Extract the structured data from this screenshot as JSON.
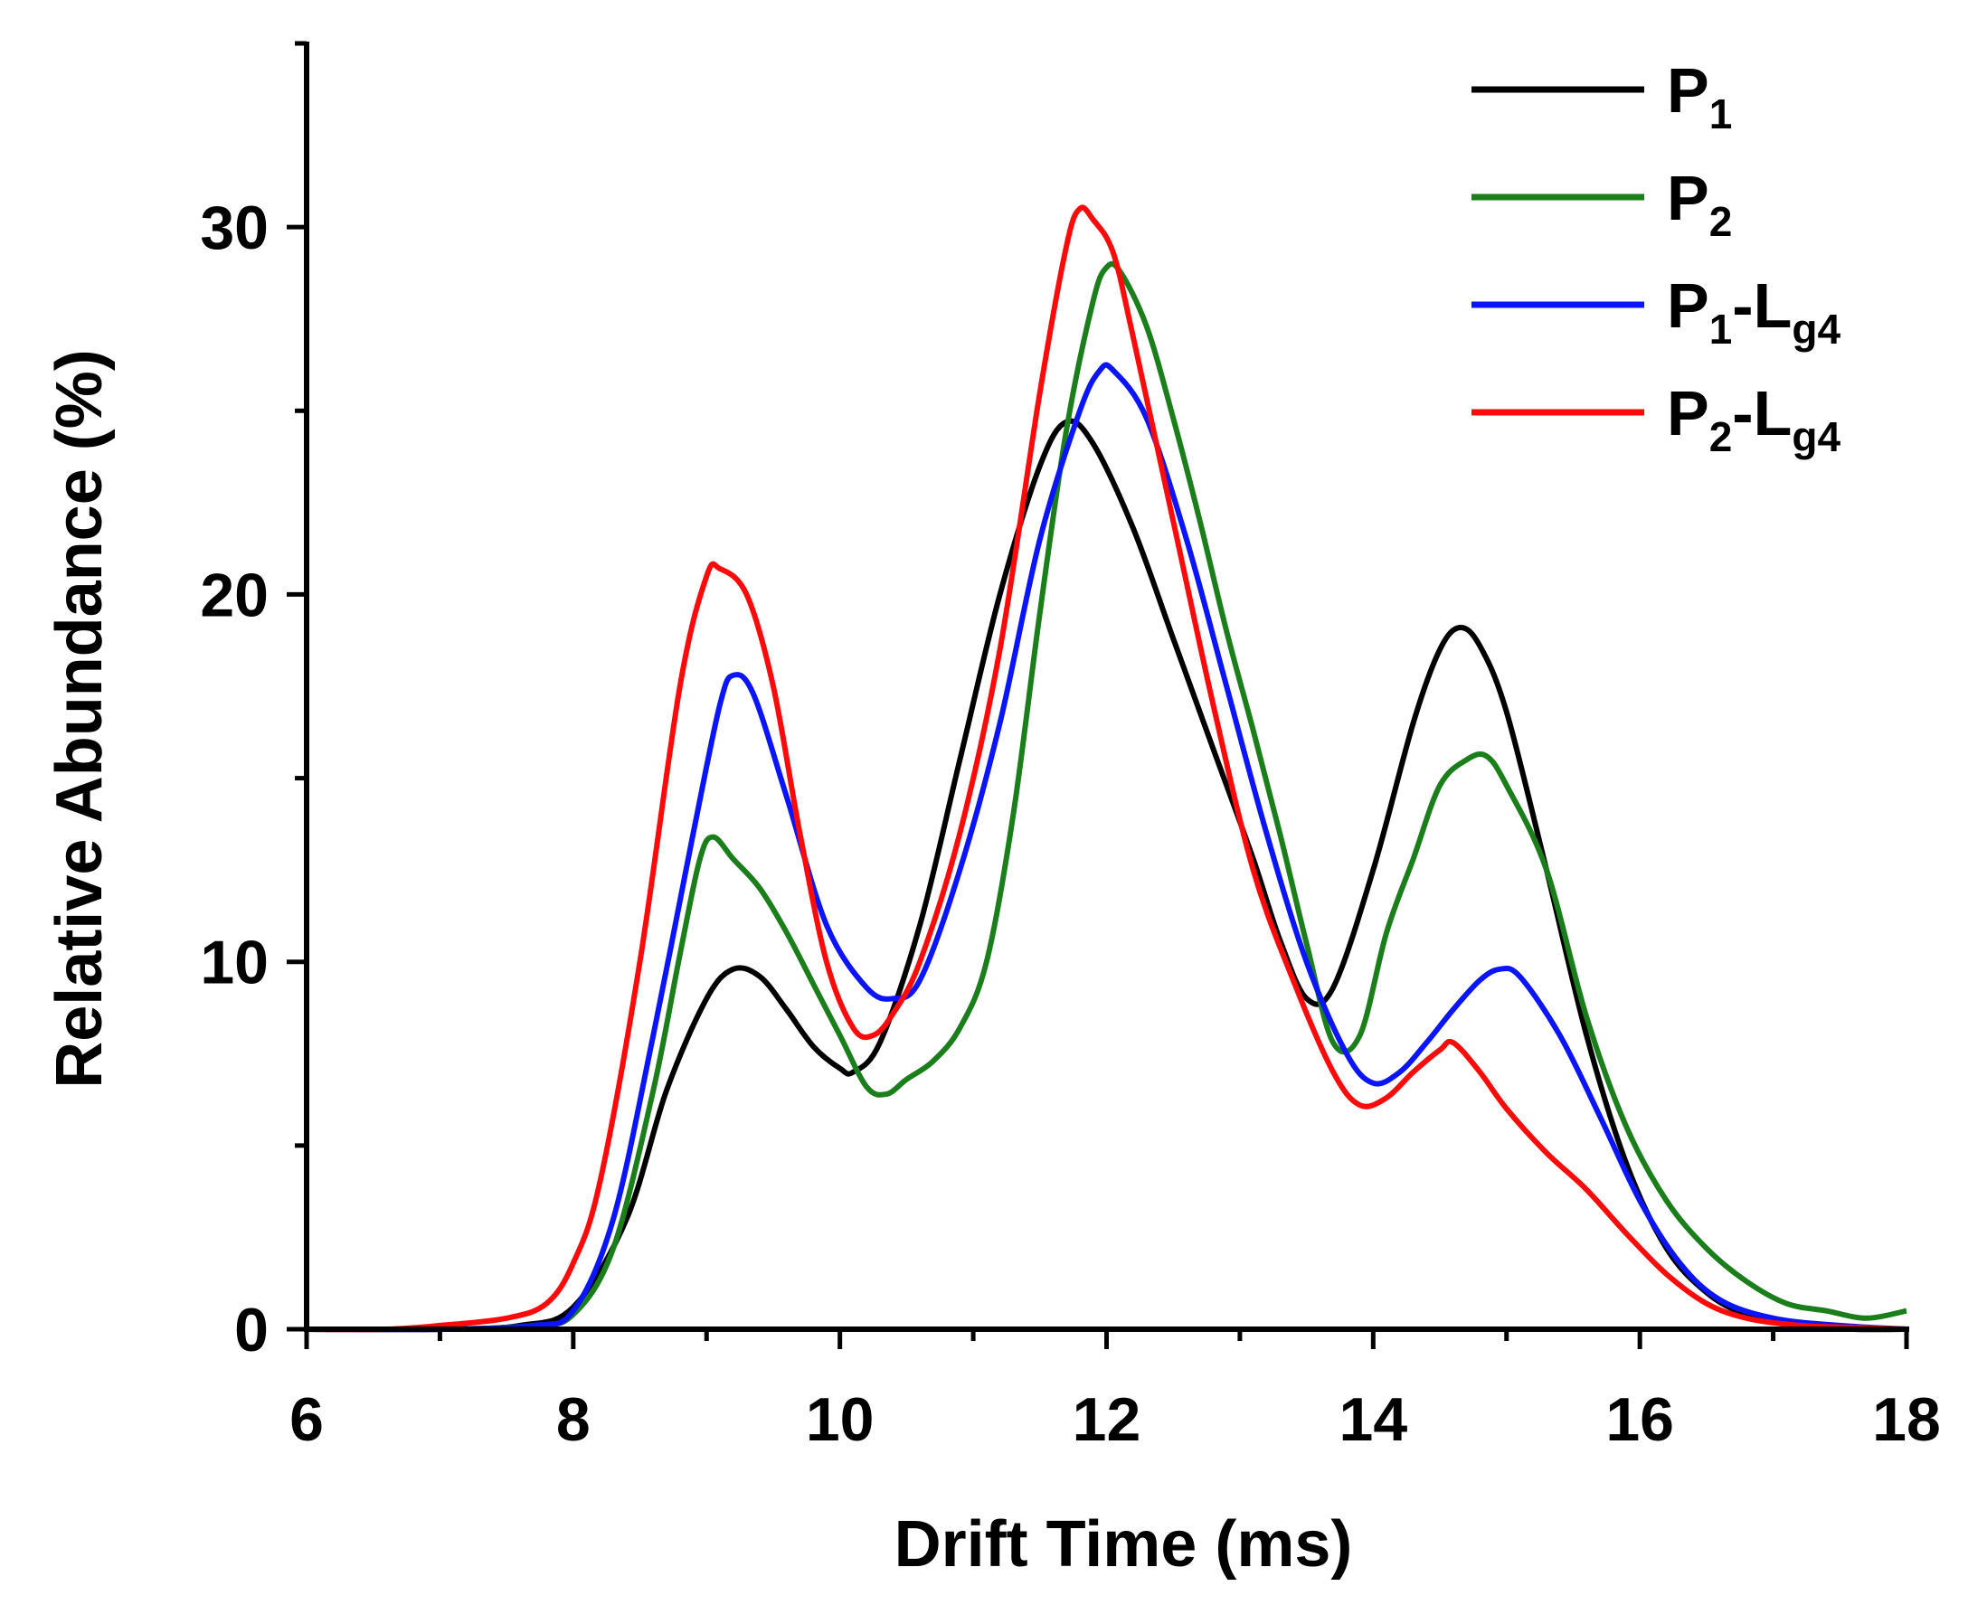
{
  "chart_data": {
    "type": "line",
    "title": "",
    "xlabel": "Drift Time (ms)",
    "ylabel": "Relative Abundance (%)",
    "xlim": [
      6,
      18
    ],
    "ylim": [
      0,
      35
    ],
    "xticks": [
      6,
      8,
      10,
      12,
      14,
      16,
      18
    ],
    "yticks": [
      0,
      10,
      20,
      30
    ],
    "xtick_labels": [
      "6",
      "8",
      "10",
      "12",
      "14",
      "16",
      "18"
    ],
    "ytick_labels": [
      "0",
      "10",
      "20",
      "30"
    ],
    "legend_position": "top-right",
    "grid": false,
    "series": [
      {
        "name": "P1",
        "label_main": "P",
        "label_sub": "1",
        "label_suffix": "",
        "label_suffix_sub": "",
        "color": "#000000",
        "x": [
          6.0,
          7.0,
          7.6,
          8.0,
          8.4,
          8.7,
          9.0,
          9.2,
          9.4,
          9.6,
          9.8,
          10.0,
          10.1,
          10.3,
          10.6,
          10.9,
          11.2,
          11.5,
          11.7,
          11.9,
          12.2,
          12.5,
          12.8,
          13.1,
          13.3,
          13.5,
          13.7,
          14.0,
          14.3,
          14.5,
          14.65,
          14.8,
          15.0,
          15.3,
          15.6,
          15.9,
          16.2,
          16.5,
          16.8,
          17.2,
          17.6,
          18.0
        ],
        "y": [
          0,
          0,
          0.1,
          0.6,
          3.0,
          6.5,
          9.0,
          9.8,
          9.6,
          8.7,
          7.7,
          7.1,
          7.0,
          7.8,
          11.0,
          15.5,
          20.0,
          23.5,
          24.7,
          24.1,
          21.8,
          18.8,
          15.8,
          12.8,
          10.6,
          9.0,
          9.3,
          12.5,
          16.5,
          18.5,
          19.1,
          18.6,
          16.8,
          12.5,
          8.0,
          4.5,
          2.2,
          1.0,
          0.4,
          0.1,
          0.0,
          0.0
        ]
      },
      {
        "name": "P2",
        "label_main": "P",
        "label_sub": "2",
        "label_suffix": "",
        "label_suffix_sub": "",
        "color": "#1a7f1a",
        "x": [
          6.0,
          7.0,
          7.7,
          8.0,
          8.3,
          8.6,
          8.8,
          8.95,
          9.05,
          9.2,
          9.4,
          9.6,
          9.8,
          10.0,
          10.2,
          10.35,
          10.5,
          10.7,
          10.9,
          11.1,
          11.3,
          11.5,
          11.7,
          11.9,
          12.0,
          12.1,
          12.3,
          12.5,
          12.7,
          12.9,
          13.1,
          13.3,
          13.5,
          13.7,
          13.9,
          14.1,
          14.3,
          14.5,
          14.7,
          14.85,
          15.0,
          15.3,
          15.6,
          15.9,
          16.2,
          16.5,
          16.8,
          17.1,
          17.4,
          17.7,
          18.0
        ],
        "y": [
          0,
          0,
          0.1,
          0.4,
          2.2,
          6.5,
          10.2,
          12.8,
          13.4,
          12.8,
          12.0,
          10.8,
          9.4,
          8.0,
          6.6,
          6.4,
          6.8,
          7.3,
          8.2,
          10.0,
          14.0,
          19.5,
          24.5,
          28.0,
          28.9,
          28.8,
          27.3,
          24.8,
          22.0,
          19.0,
          16.3,
          13.5,
          10.5,
          7.8,
          8.0,
          10.8,
          12.8,
          14.8,
          15.5,
          15.6,
          14.8,
          12.5,
          8.5,
          5.5,
          3.5,
          2.2,
          1.3,
          0.7,
          0.5,
          0.3,
          0.5
        ]
      },
      {
        "name": "P1-Lg4",
        "label_main": "P",
        "label_sub": "1",
        "label_suffix": "-L",
        "label_suffix_sub": "g4",
        "color": "#0a14ff",
        "x": [
          6.0,
          7.0,
          7.7,
          8.0,
          8.3,
          8.6,
          8.9,
          9.1,
          9.2,
          9.35,
          9.6,
          9.9,
          10.2,
          10.4,
          10.6,
          10.9,
          11.2,
          11.5,
          11.8,
          11.95,
          12.05,
          12.3,
          12.6,
          12.9,
          13.2,
          13.5,
          13.8,
          14.0,
          14.2,
          14.4,
          14.6,
          14.8,
          14.95,
          15.1,
          15.4,
          15.7,
          16.0,
          16.3,
          16.6,
          17.0,
          17.5,
          18.0
        ],
        "y": [
          0,
          0,
          0.1,
          0.5,
          3.0,
          8.0,
          13.5,
          17.0,
          17.8,
          17.3,
          14.5,
          11.0,
          9.3,
          9.0,
          9.5,
          12.5,
          16.5,
          21.5,
          25.0,
          26.1,
          26.1,
          24.8,
          21.5,
          17.5,
          13.5,
          10.0,
          7.5,
          6.7,
          7.0,
          7.8,
          8.7,
          9.5,
          9.8,
          9.6,
          8.0,
          5.8,
          3.5,
          1.8,
          0.8,
          0.3,
          0.1,
          0.0
        ]
      },
      {
        "name": "P2-Lg4",
        "label_main": "P",
        "label_sub": "2",
        "label_suffix": "-L",
        "label_suffix_sub": "g4",
        "color": "#ff0a0a",
        "x": [
          6.0,
          6.6,
          7.0,
          7.5,
          7.8,
          8.0,
          8.2,
          8.5,
          8.8,
          9.0,
          9.1,
          9.3,
          9.5,
          9.7,
          9.9,
          10.1,
          10.25,
          10.4,
          10.6,
          10.9,
          11.2,
          11.5,
          11.7,
          11.8,
          11.9,
          12.05,
          12.2,
          12.5,
          12.8,
          13.1,
          13.4,
          13.7,
          13.9,
          14.1,
          14.3,
          14.5,
          14.6,
          14.8,
          15.0,
          15.3,
          15.6,
          15.9,
          16.2,
          16.5,
          16.8,
          17.2,
          17.6,
          18.0
        ],
        "y": [
          0,
          0,
          0.1,
          0.3,
          0.7,
          1.8,
          4.0,
          10.0,
          17.5,
          20.5,
          20.7,
          20.0,
          17.5,
          13.5,
          10.0,
          8.2,
          8.0,
          8.6,
          10.0,
          13.5,
          18.5,
          25.5,
          29.5,
          30.5,
          30.2,
          29.3,
          27.0,
          22.0,
          17.0,
          12.5,
          9.5,
          7.0,
          6.1,
          6.3,
          7.0,
          7.6,
          7.8,
          7.0,
          6.0,
          4.8,
          3.8,
          2.6,
          1.5,
          0.7,
          0.3,
          0.1,
          0.05,
          0.0
        ]
      }
    ]
  }
}
